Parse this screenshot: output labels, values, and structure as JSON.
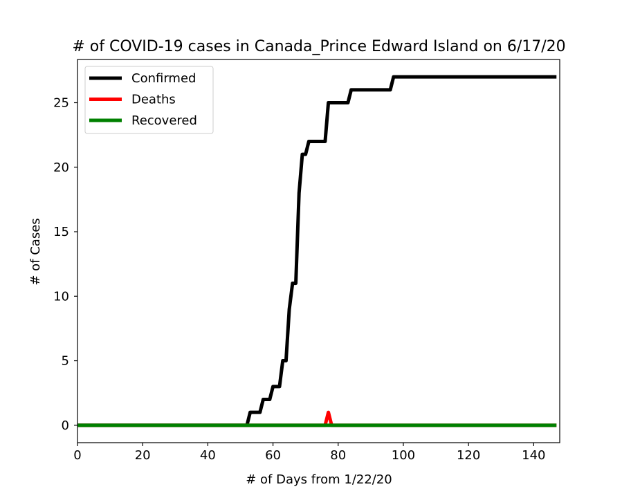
{
  "chart_data": {
    "type": "line",
    "title": "# of COVID-19 cases in Canada_Prince Edward Island on 6/17/20",
    "xlabel": "# of Days from 1/22/20",
    "ylabel": "# of Cases",
    "xlim": [
      0,
      148
    ],
    "ylim": [
      -1.35,
      28.35
    ],
    "xticks": [
      0,
      20,
      40,
      60,
      80,
      100,
      120,
      140
    ],
    "yticks": [
      0,
      5,
      10,
      15,
      20,
      25
    ],
    "grid": false,
    "legend_position": "top-left",
    "series": [
      {
        "name": "Confirmed",
        "color": "#000000",
        "points": [
          [
            0,
            0
          ],
          [
            52,
            0
          ],
          [
            53,
            1
          ],
          [
            56,
            1
          ],
          [
            57,
            2
          ],
          [
            59,
            2
          ],
          [
            60,
            3
          ],
          [
            62,
            3
          ],
          [
            63,
            5
          ],
          [
            64,
            5
          ],
          [
            65,
            9
          ],
          [
            66,
            11
          ],
          [
            67,
            11
          ],
          [
            68,
            18
          ],
          [
            69,
            21
          ],
          [
            70,
            21
          ],
          [
            71,
            22
          ],
          [
            76,
            22
          ],
          [
            77,
            25
          ],
          [
            83,
            25
          ],
          [
            84,
            26
          ],
          [
            96,
            26
          ],
          [
            97,
            27
          ],
          [
            147,
            27
          ]
        ]
      },
      {
        "name": "Deaths",
        "color": "#ff0000",
        "points": [
          [
            0,
            0
          ],
          [
            76,
            0
          ],
          [
            77,
            1
          ],
          [
            78,
            0
          ],
          [
            147,
            0
          ]
        ]
      },
      {
        "name": "Recovered",
        "color": "#008000",
        "points": [
          [
            0,
            0
          ],
          [
            147,
            0
          ]
        ]
      }
    ]
  }
}
